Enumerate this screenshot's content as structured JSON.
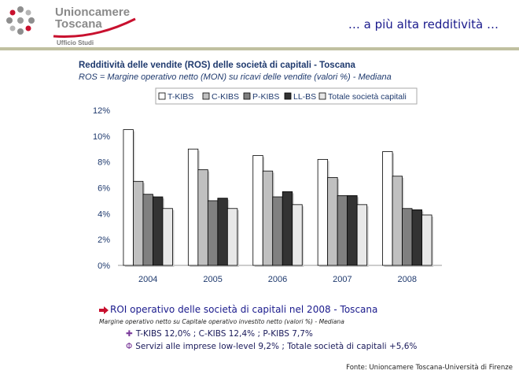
{
  "header": {
    "logo_line1": "Unioncamere",
    "logo_line2": "Toscana",
    "logo_sub": "Ufficio Studi",
    "slide_title": "… a più alta redditività …"
  },
  "chart_data": {
    "type": "bar",
    "title": "Redditività delle vendite (ROS) delle società di capitali - Toscana",
    "subtitle": "ROS = Margine operativo netto (MON) su ricavi delle vendite (valori %) - Mediana",
    "categories": [
      "2004",
      "2005",
      "2006",
      "2007",
      "2008"
    ],
    "ylim": [
      0,
      12
    ],
    "yticks": [
      0,
      2,
      4,
      6,
      8,
      10,
      12
    ],
    "ytick_labels": [
      "0%",
      "2%",
      "4%",
      "6%",
      "8%",
      "10%",
      "12%"
    ],
    "legend_position": "top",
    "grid": false,
    "series": [
      {
        "name": "T-KIBS",
        "color": "#ffffff",
        "values": [
          10.5,
          9.0,
          8.5,
          8.2,
          8.8
        ]
      },
      {
        "name": "C-KIBS",
        "color": "#c0c0c0",
        "values": [
          6.5,
          7.4,
          7.3,
          6.8,
          6.9
        ]
      },
      {
        "name": "P-KIBS",
        "color": "#808080",
        "values": [
          5.5,
          5.0,
          5.3,
          5.4,
          4.4
        ]
      },
      {
        "name": "LL-BS",
        "color": "#333333",
        "values": [
          5.3,
          5.2,
          5.7,
          5.4,
          4.3
        ]
      },
      {
        "name": "Totale società capitali",
        "color": "#e8e8e8",
        "values": [
          4.4,
          4.4,
          4.7,
          4.7,
          3.9
        ]
      }
    ]
  },
  "roi": {
    "title": "ROI operativo delle società di capitali nel 2008 - Toscana",
    "subtitle": "Margine operativo netto su Capitale operativo investito netto (valori %) - Mediana",
    "bullets": [
      "T-KIBS 12,0% ; C-KIBS 12,4% ; P-KIBS 7,7%",
      "Servizi alle imprese low-level 9,2% ; Totale società di capitali +5,6%"
    ]
  },
  "footer": {
    "source": "Fonte: Unioncamere Toscana-Università di Firenze"
  }
}
